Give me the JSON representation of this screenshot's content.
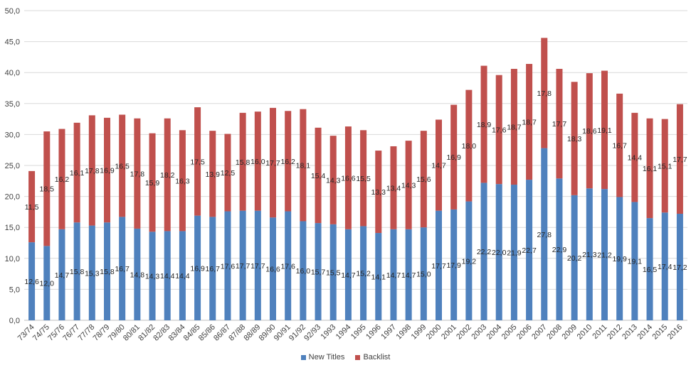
{
  "chart_data": {
    "type": "bar",
    "stacked": true,
    "title": "",
    "xlabel": "",
    "ylabel": "",
    "ylim": [
      0,
      50
    ],
    "yticks": [
      "0,0",
      "5,0",
      "10,0",
      "15,0",
      "20,0",
      "25,0",
      "30,0",
      "35,0",
      "40,0",
      "45,0",
      "50,0"
    ],
    "grid": true,
    "legend_position": "bottom",
    "categories": [
      "73/74",
      "74/75",
      "75/76",
      "76/77",
      "77/78",
      "78/79",
      "79/80",
      "80/81",
      "81/82",
      "82/83",
      "83/84",
      "84/85",
      "85/86",
      "86/87",
      "87/88",
      "88/89",
      "89/90",
      "90/91",
      "91/92",
      "92/93",
      "1993",
      "1994",
      "1995",
      "1996",
      "1997",
      "1998",
      "1999",
      "2000",
      "2001",
      "2002",
      "2003",
      "2004",
      "2005",
      "2006",
      "2007",
      "2008",
      "2009",
      "2010",
      "2011",
      "2012",
      "2013",
      "2014",
      "2015",
      "2016"
    ],
    "series": [
      {
        "name": "New Titles",
        "color": "#4f81bd",
        "values": [
          12.6,
          12.0,
          14.7,
          15.8,
          15.3,
          15.8,
          16.7,
          14.8,
          14.3,
          14.4,
          14.4,
          16.9,
          16.7,
          17.6,
          17.7,
          17.7,
          16.6,
          17.6,
          16.0,
          15.7,
          15.5,
          14.7,
          15.2,
          14.1,
          14.7,
          14.7,
          15.0,
          17.7,
          17.9,
          19.2,
          22.2,
          22.0,
          21.9,
          22.7,
          27.8,
          22.9,
          20.2,
          21.3,
          21.2,
          19.9,
          19.1,
          16.5,
          17.4,
          17.2
        ],
        "labels": [
          "12,6",
          "12,0",
          "14,7",
          "15,8",
          "15,3",
          "15,8",
          "16,7",
          "14,8",
          "14,3",
          "14,4",
          "14,4",
          "16,9",
          "16,7",
          "17,6",
          "17,7",
          "17,7",
          "16,6",
          "17,6",
          "16,0",
          "15,7",
          "15,5",
          "14,7",
          "15,2",
          "14,1",
          "14,7",
          "14,7",
          "15,0",
          "17,7",
          "17,9",
          "19,2",
          "22,2",
          "22,0",
          "21,9",
          "22,7",
          "27,8",
          "22,9",
          "20,2",
          "21,3",
          "21,2",
          "19,9",
          "19,1",
          "16,5",
          "17,4",
          "17,2"
        ]
      },
      {
        "name": "Backlist",
        "color": "#c0504d",
        "values": [
          11.5,
          18.5,
          16.2,
          16.1,
          17.8,
          16.9,
          16.5,
          17.8,
          15.9,
          18.2,
          16.3,
          17.5,
          13.9,
          12.5,
          15.8,
          16.0,
          17.7,
          16.2,
          18.1,
          15.4,
          14.3,
          16.6,
          15.5,
          13.3,
          13.4,
          14.3,
          15.6,
          14.7,
          16.9,
          18.0,
          18.9,
          17.6,
          18.7,
          18.7,
          17.8,
          17.7,
          18.3,
          18.6,
          19.1,
          16.7,
          14.4,
          16.1,
          15.1,
          17.7
        ],
        "labels": [
          "11,5",
          "18,5",
          "16,2",
          "16,1",
          "17,8",
          "16,9",
          "16,5",
          "17,8",
          "15,9",
          "18,2",
          "16,3",
          "17,5",
          "13,9",
          "12,5",
          "15,8",
          "16,0",
          "17,7",
          "16,2",
          "18,1",
          "15,4",
          "14,3",
          "16,6",
          "15,5",
          "13,3",
          "13,4",
          "14,3",
          "15,6",
          "14,7",
          "16,9",
          "18,0",
          "18,9",
          "17,6",
          "18,7",
          "18,7",
          "17,8",
          "17,7",
          "18,3",
          "18,6",
          "19,1",
          "16,7",
          "14,4",
          "16,1",
          "15,1",
          "17,7"
        ]
      }
    ]
  }
}
